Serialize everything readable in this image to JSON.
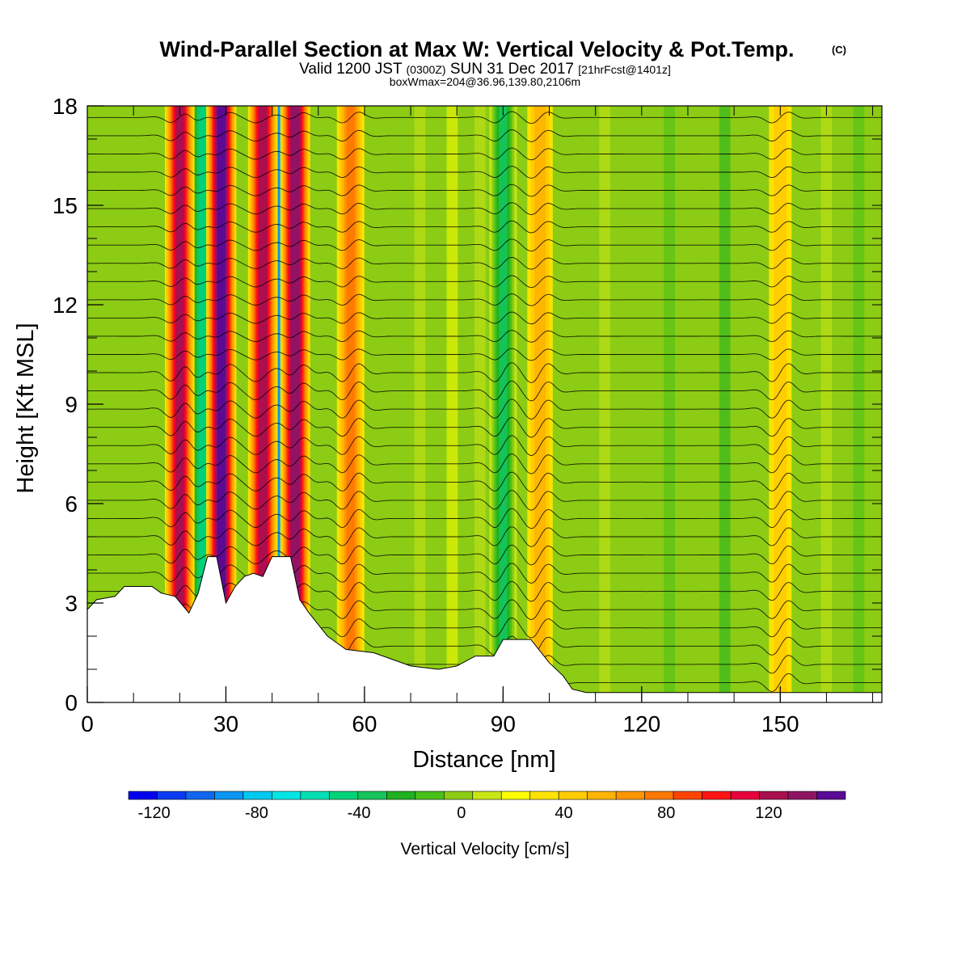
{
  "title": {
    "main": "Wind-Parallel Section at Max W: Vertical Velocity & Pot.Temp.",
    "copyright": "(C)",
    "valid_prefix": "Valid 1200 JST",
    "valid_zulu": "(0300Z)",
    "valid_date": "SUN 31 Dec 2017",
    "forecast": "[21hrFcst@1401z]",
    "boxline": "boxWmax=204@36.96,139.80,2106m"
  },
  "chart_data": {
    "type": "heatmap",
    "xlabel": "Distance [nm]",
    "ylabel": "Height [Kft MSL]",
    "xlim": [
      0,
      172
    ],
    "ylim": [
      0,
      18
    ],
    "x_ticks": [
      0,
      30,
      60,
      90,
      120,
      150
    ],
    "y_ticks": [
      0,
      3,
      6,
      9,
      12,
      15,
      18
    ],
    "colorbar": {
      "label": "Vertical Velocity [cm/s]",
      "tick_labels": [
        -120,
        -80,
        -40,
        0,
        40,
        80,
        120
      ],
      "range": [
        -130,
        150
      ],
      "step": 10,
      "colors": [
        "#0000ee",
        "#0a3cf2",
        "#1266f0",
        "#0a96f2",
        "#00c8f0",
        "#00e6e6",
        "#00e0b4",
        "#00d27a",
        "#16c45a",
        "#20b020",
        "#48c018",
        "#8ccc14",
        "#c8e614",
        "#ffff00",
        "#ffe400",
        "#ffcc00",
        "#ffb400",
        "#ff9600",
        "#ff7800",
        "#ff4400",
        "#ff1414",
        "#e6003c",
        "#a8104e",
        "#901464",
        "#5a0a96"
      ]
    },
    "background_value": 0,
    "updrafts": [
      {
        "x": 20,
        "peak_cm_s": 90
      },
      {
        "x": 29,
        "peak_cm_s": 110
      },
      {
        "x": 38,
        "peak_cm_s": 90
      },
      {
        "x": 45,
        "peak_cm_s": 100
      },
      {
        "x": 57,
        "peak_cm_s": 50
      },
      {
        "x": 98,
        "peak_cm_s": 35
      },
      {
        "x": 150,
        "peak_cm_s": 25
      }
    ],
    "downdrafts": [
      {
        "x": 25,
        "peak_cm_s": -60
      },
      {
        "x": 41,
        "peak_cm_s": -100
      },
      {
        "x": 90,
        "peak_cm_s": -50
      }
    ],
    "terrain_kft": [
      [
        0,
        2.8
      ],
      [
        2,
        3.1
      ],
      [
        6,
        3.2
      ],
      [
        8,
        3.5
      ],
      [
        14,
        3.5
      ],
      [
        16,
        3.3
      ],
      [
        19,
        3.2
      ],
      [
        22,
        2.7
      ],
      [
        24,
        3.3
      ],
      [
        26,
        4.4
      ],
      [
        28,
        4.4
      ],
      [
        30,
        3.0
      ],
      [
        32,
        3.5
      ],
      [
        34,
        3.8
      ],
      [
        36,
        3.9
      ],
      [
        38,
        3.8
      ],
      [
        40,
        4.4
      ],
      [
        44,
        4.4
      ],
      [
        46,
        3.1
      ],
      [
        48,
        2.7
      ],
      [
        52,
        2.0
      ],
      [
        56,
        1.6
      ],
      [
        62,
        1.5
      ],
      [
        70,
        1.1
      ],
      [
        76,
        1.0
      ],
      [
        80,
        1.1
      ],
      [
        84,
        1.4
      ],
      [
        88,
        1.4
      ],
      [
        90,
        1.9
      ],
      [
        96,
        1.9
      ],
      [
        100,
        1.2
      ],
      [
        103,
        0.8
      ],
      [
        105,
        0.4
      ],
      [
        108,
        0.3
      ],
      [
        172,
        0.3
      ]
    ]
  }
}
